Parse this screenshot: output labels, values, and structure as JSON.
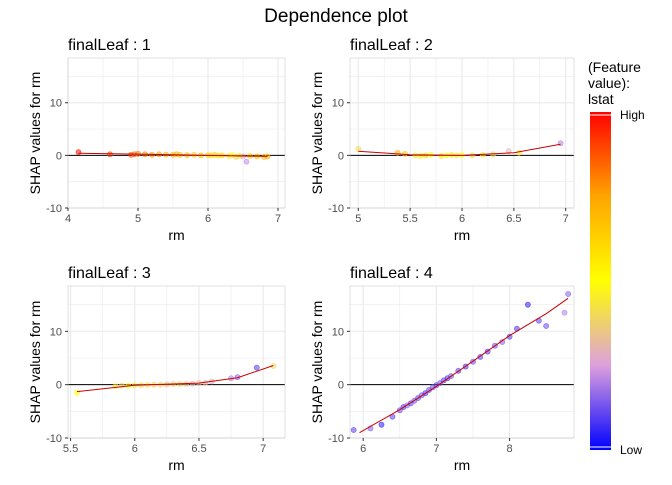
{
  "title": "Dependence plot",
  "legend": {
    "title_lines": [
      "(Feature",
      "value):",
      "lstat"
    ],
    "high_label": "High",
    "low_label": "Low",
    "gradient_colors": [
      "#ff0000",
      "#ffa500",
      "#ffff00",
      "#dda0dd",
      "#0000ff"
    ]
  },
  "colors": {
    "fit_line": "#cc0000",
    "zero_line": "#000000",
    "grid": "#ebebeb",
    "panel_border": "#cccccc"
  },
  "chart_data": [
    {
      "type": "scatter",
      "title": "finalLeaf : 1",
      "xlabel": "rm",
      "ylabel": "SHAP values for rm",
      "xlim": [
        4.0,
        7.1
      ],
      "ylim": [
        -10,
        18.5
      ],
      "xticks": [
        4,
        5,
        6,
        7
      ],
      "yticks": [
        -10,
        0,
        10
      ],
      "grid": true,
      "points": [
        {
          "x": 4.15,
          "y": 0.6,
          "c": 0.02
        },
        {
          "x": 4.6,
          "y": 0.2,
          "c": 0.1
        },
        {
          "x": 4.9,
          "y": 0.1,
          "c": 0.12
        },
        {
          "x": 4.95,
          "y": 0.2,
          "c": 0.15
        },
        {
          "x": 5.0,
          "y": 0.3,
          "c": 0.18
        },
        {
          "x": 5.1,
          "y": 0.2,
          "c": 0.2
        },
        {
          "x": 5.2,
          "y": 0.1,
          "c": 0.22
        },
        {
          "x": 5.3,
          "y": 0.2,
          "c": 0.25
        },
        {
          "x": 5.4,
          "y": 0.15,
          "c": 0.28
        },
        {
          "x": 5.5,
          "y": 0.1,
          "c": 0.3
        },
        {
          "x": 5.55,
          "y": 0.2,
          "c": 0.28
        },
        {
          "x": 5.6,
          "y": 0.1,
          "c": 0.32
        },
        {
          "x": 5.7,
          "y": 0.05,
          "c": 0.3
        },
        {
          "x": 5.8,
          "y": 0.1,
          "c": 0.35
        },
        {
          "x": 5.9,
          "y": 0.0,
          "c": 0.33
        },
        {
          "x": 6.0,
          "y": 0.05,
          "c": 0.36
        },
        {
          "x": 6.05,
          "y": 0.0,
          "c": 0.4
        },
        {
          "x": 6.1,
          "y": 0.1,
          "c": 0.38
        },
        {
          "x": 6.15,
          "y": -0.05,
          "c": 0.42
        },
        {
          "x": 6.2,
          "y": 0.0,
          "c": 0.4
        },
        {
          "x": 6.3,
          "y": -0.1,
          "c": 0.45
        },
        {
          "x": 6.35,
          "y": 0.05,
          "c": 0.5
        },
        {
          "x": 6.4,
          "y": -0.3,
          "c": 0.6
        },
        {
          "x": 6.45,
          "y": -0.1,
          "c": 0.45
        },
        {
          "x": 6.5,
          "y": -0.2,
          "c": 0.7
        },
        {
          "x": 6.55,
          "y": -1.2,
          "c": 0.78
        },
        {
          "x": 6.6,
          "y": -0.1,
          "c": 0.4
        },
        {
          "x": 6.7,
          "y": -0.2,
          "c": 0.35
        },
        {
          "x": 6.8,
          "y": -0.3,
          "c": 0.3
        },
        {
          "x": 6.85,
          "y": -0.2,
          "c": 0.28
        }
      ],
      "fit": [
        [
          4.15,
          0.4
        ],
        [
          5.0,
          0.25
        ],
        [
          6.0,
          0.0
        ],
        [
          6.85,
          -0.2
        ]
      ]
    },
    {
      "type": "scatter",
      "title": "finalLeaf : 2",
      "xlabel": "rm",
      "ylabel": "SHAP values for rm",
      "xlim": [
        4.92,
        7.08
      ],
      "ylim": [
        -10,
        18.5
      ],
      "xticks": [
        5.0,
        5.5,
        6.0,
        6.5,
        7.0
      ],
      "yticks": [
        -10,
        0,
        10
      ],
      "grid": true,
      "points": [
        {
          "x": 5.0,
          "y": 1.2,
          "c": 0.6
        },
        {
          "x": 5.38,
          "y": 0.5,
          "c": 0.3
        },
        {
          "x": 5.45,
          "y": 0.3,
          "c": 0.35
        },
        {
          "x": 5.55,
          "y": 0.0,
          "c": 0.55
        },
        {
          "x": 5.6,
          "y": -0.1,
          "c": 0.45
        },
        {
          "x": 5.65,
          "y": 0.0,
          "c": 0.4
        },
        {
          "x": 5.7,
          "y": 0.1,
          "c": 0.5
        },
        {
          "x": 5.8,
          "y": -0.1,
          "c": 0.42
        },
        {
          "x": 5.85,
          "y": 0.0,
          "c": 0.5
        },
        {
          "x": 5.9,
          "y": 0.1,
          "c": 0.45
        },
        {
          "x": 5.95,
          "y": 0.0,
          "c": 0.55
        },
        {
          "x": 6.0,
          "y": 0.05,
          "c": 0.5
        },
        {
          "x": 6.1,
          "y": 0.0,
          "c": 0.6
        },
        {
          "x": 6.2,
          "y": 0.1,
          "c": 0.55
        },
        {
          "x": 6.3,
          "y": 0.2,
          "c": 0.6
        },
        {
          "x": 6.45,
          "y": 0.8,
          "c": 0.7
        },
        {
          "x": 6.55,
          "y": 0.5,
          "c": 0.55
        },
        {
          "x": 6.95,
          "y": 2.3,
          "c": 0.8
        }
      ],
      "fit": [
        [
          5.0,
          0.8
        ],
        [
          5.5,
          0.1
        ],
        [
          6.0,
          0.0
        ],
        [
          6.5,
          0.5
        ],
        [
          6.95,
          2.1
        ]
      ]
    },
    {
      "type": "scatter",
      "title": "finalLeaf : 3",
      "xlabel": "rm",
      "ylabel": "SHAP values for rm",
      "xlim": [
        5.48,
        7.17
      ],
      "ylim": [
        -10,
        18.5
      ],
      "xticks": [
        5.5,
        6.0,
        6.5,
        7.0
      ],
      "yticks": [
        -10,
        0,
        10
      ],
      "grid": true,
      "points": [
        {
          "x": 5.55,
          "y": -1.5,
          "c": 0.5
        },
        {
          "x": 5.85,
          "y": -0.3,
          "c": 0.55
        },
        {
          "x": 5.9,
          "y": -0.2,
          "c": 0.6
        },
        {
          "x": 5.95,
          "y": -0.2,
          "c": 0.5
        },
        {
          "x": 6.0,
          "y": -0.1,
          "c": 0.55
        },
        {
          "x": 6.05,
          "y": -0.1,
          "c": 0.6
        },
        {
          "x": 6.1,
          "y": -0.05,
          "c": 0.58
        },
        {
          "x": 6.15,
          "y": 0.0,
          "c": 0.62
        },
        {
          "x": 6.2,
          "y": 0.0,
          "c": 0.6
        },
        {
          "x": 6.25,
          "y": 0.05,
          "c": 0.65
        },
        {
          "x": 6.3,
          "y": 0.1,
          "c": 0.62
        },
        {
          "x": 6.35,
          "y": 0.1,
          "c": 0.6
        },
        {
          "x": 6.4,
          "y": 0.15,
          "c": 0.65
        },
        {
          "x": 6.45,
          "y": 0.2,
          "c": 0.7
        },
        {
          "x": 6.5,
          "y": 0.3,
          "c": 0.68
        },
        {
          "x": 6.55,
          "y": 0.35,
          "c": 0.7
        },
        {
          "x": 6.6,
          "y": 0.6,
          "c": 0.72
        },
        {
          "x": 6.75,
          "y": 1.2,
          "c": 0.8
        },
        {
          "x": 6.8,
          "y": 1.4,
          "c": 0.85
        },
        {
          "x": 6.95,
          "y": 3.2,
          "c": 0.9
        },
        {
          "x": 7.08,
          "y": 3.5,
          "c": 0.6
        }
      ],
      "fit": [
        [
          5.55,
          -1.3
        ],
        [
          6.0,
          -0.1
        ],
        [
          6.5,
          0.3
        ],
        [
          6.8,
          1.3
        ],
        [
          7.08,
          3.6
        ]
      ]
    },
    {
      "type": "scatter",
      "title": "finalLeaf : 4",
      "xlabel": "rm",
      "ylabel": "SHAP values for rm",
      "xlim": [
        5.82,
        8.88
      ],
      "ylim": [
        -10,
        18.5
      ],
      "xticks": [
        6,
        7,
        8
      ],
      "yticks": [
        -10,
        0,
        10
      ],
      "grid": true,
      "points": [
        {
          "x": 5.87,
          "y": -8.5,
          "c": 0.9
        },
        {
          "x": 6.1,
          "y": -8.2,
          "c": 0.85
        },
        {
          "x": 6.25,
          "y": -7.5,
          "c": 0.95
        },
        {
          "x": 6.4,
          "y": -6.0,
          "c": 0.9
        },
        {
          "x": 6.5,
          "y": -4.8,
          "c": 0.88
        },
        {
          "x": 6.55,
          "y": -4.2,
          "c": 0.92
        },
        {
          "x": 6.6,
          "y": -3.9,
          "c": 0.85
        },
        {
          "x": 6.65,
          "y": -3.5,
          "c": 0.9
        },
        {
          "x": 6.7,
          "y": -3.0,
          "c": 0.87
        },
        {
          "x": 6.75,
          "y": -2.5,
          "c": 0.9
        },
        {
          "x": 6.8,
          "y": -2.0,
          "c": 0.88
        },
        {
          "x": 6.85,
          "y": -1.6,
          "c": 0.92
        },
        {
          "x": 6.9,
          "y": -1.0,
          "c": 0.9
        },
        {
          "x": 6.95,
          "y": -0.5,
          "c": 0.88
        },
        {
          "x": 7.0,
          "y": -0.1,
          "c": 0.9
        },
        {
          "x": 7.05,
          "y": 0.3,
          "c": 0.87
        },
        {
          "x": 7.1,
          "y": 0.8,
          "c": 0.9
        },
        {
          "x": 7.15,
          "y": 1.2,
          "c": 0.92
        },
        {
          "x": 7.2,
          "y": 1.6,
          "c": 0.88
        },
        {
          "x": 7.3,
          "y": 2.6,
          "c": 0.9
        },
        {
          "x": 7.4,
          "y": 3.4,
          "c": 0.92
        },
        {
          "x": 7.5,
          "y": 4.3,
          "c": 0.88
        },
        {
          "x": 7.6,
          "y": 5.2,
          "c": 0.9
        },
        {
          "x": 7.7,
          "y": 6.2,
          "c": 0.92
        },
        {
          "x": 7.8,
          "y": 7.3,
          "c": 0.88
        },
        {
          "x": 7.9,
          "y": 8.0,
          "c": 0.85
        },
        {
          "x": 8.0,
          "y": 9.0,
          "c": 0.9
        },
        {
          "x": 8.1,
          "y": 10.5,
          "c": 0.92
        },
        {
          "x": 8.25,
          "y": 15.0,
          "c": 0.95
        },
        {
          "x": 8.4,
          "y": 12.0,
          "c": 0.9
        },
        {
          "x": 8.5,
          "y": 11.0,
          "c": 0.88
        },
        {
          "x": 8.75,
          "y": 13.5,
          "c": 0.8
        },
        {
          "x": 8.8,
          "y": 17.0,
          "c": 0.85
        }
      ],
      "fit": [
        [
          5.95,
          -9.0
        ],
        [
          6.5,
          -4.7
        ],
        [
          7.0,
          -0.3
        ],
        [
          7.5,
          4.4
        ],
        [
          8.0,
          9.2
        ],
        [
          8.5,
          13.3
        ],
        [
          8.8,
          16.2
        ]
      ]
    }
  ]
}
